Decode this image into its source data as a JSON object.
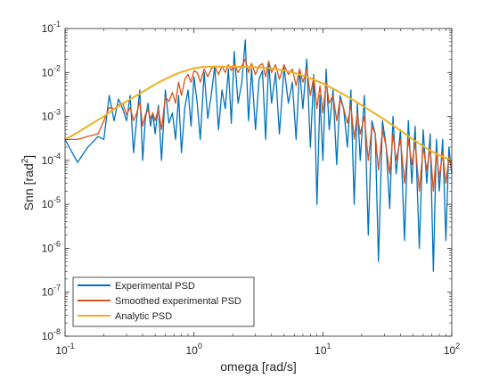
{
  "figure": {
    "background": "#ffffff"
  },
  "chart_data": {
    "type": "line",
    "title": "",
    "xlabel": "omega [rad/s]",
    "ylabel_main": "Snn [rad",
    "ylabel_sup": "2",
    "ylabel_close": "]",
    "xscale": "log",
    "yscale": "log",
    "xlim": [
      0.1,
      100
    ],
    "ylim": [
      1e-08,
      0.1
    ],
    "grid": false,
    "legend_position": "bottom-left",
    "x_ticks": [
      {
        "value": 0.1,
        "base": "10",
        "exp": "-1"
      },
      {
        "value": 1,
        "base": "10",
        "exp": "0"
      },
      {
        "value": 10,
        "base": "10",
        "exp": "1"
      },
      {
        "value": 100,
        "base": "10",
        "exp": "2"
      }
    ],
    "y_ticks": [
      {
        "value": 1e-08,
        "base": "10",
        "exp": "-8"
      },
      {
        "value": 1e-07,
        "base": "10",
        "exp": "-7"
      },
      {
        "value": 1e-06,
        "base": "10",
        "exp": "-6"
      },
      {
        "value": 1e-05,
        "base": "10",
        "exp": "-5"
      },
      {
        "value": 0.0001,
        "base": "10",
        "exp": "-4"
      },
      {
        "value": 0.001,
        "base": "10",
        "exp": "-3"
      },
      {
        "value": 0.01,
        "base": "10",
        "exp": "-2"
      },
      {
        "value": 0.1,
        "base": "10",
        "exp": "-1"
      }
    ],
    "series": [
      {
        "name": "Experimental PSD",
        "color": "#0072BD",
        "x": [
          0.1,
          0.125,
          0.15,
          0.18,
          0.2,
          0.22,
          0.24,
          0.26,
          0.28,
          0.3,
          0.32,
          0.34,
          0.36,
          0.38,
          0.4,
          0.42,
          0.44,
          0.46,
          0.48,
          0.5,
          0.53,
          0.56,
          0.6,
          0.64,
          0.68,
          0.72,
          0.76,
          0.8,
          0.85,
          0.9,
          0.95,
          1.0,
          1.06,
          1.12,
          1.2,
          1.28,
          1.36,
          1.45,
          1.55,
          1.65,
          1.75,
          1.85,
          1.95,
          2.05,
          2.2,
          2.35,
          2.5,
          2.65,
          2.8,
          3.0,
          3.2,
          3.4,
          3.6,
          3.8,
          4.0,
          4.3,
          4.6,
          5.0,
          5.4,
          5.8,
          6.2,
          6.6,
          7.0,
          7.5,
          8.0,
          8.5,
          9.0,
          9.5,
          10.0,
          10.6,
          11.2,
          12.0,
          12.8,
          13.6,
          14.5,
          15.5,
          16.5,
          17.5,
          18.5,
          19.5,
          21.0,
          22.5,
          24.0,
          25.5,
          27.0,
          29.0,
          31.0,
          33.0,
          35.0,
          37.0,
          40.0,
          43.0,
          46.0,
          49.0,
          52.0,
          56.0,
          60.0,
          64.0,
          68.0,
          72.0,
          76.0,
          80.0,
          85.0,
          90.0,
          95.0,
          100.0
        ],
        "y": [
          0.0003,
          9e-05,
          0.0002,
          0.00035,
          0.0003,
          0.003,
          0.0008,
          0.0025,
          0.0015,
          0.0008,
          0.003,
          0.00015,
          0.0009,
          0.004,
          0.0001,
          0.0009,
          0.002,
          0.0006,
          0.0012,
          0.0004,
          0.0018,
          0.0001,
          0.004,
          0.0007,
          0.0012,
          0.0003,
          0.003,
          0.00015,
          0.0016,
          0.004,
          0.0006,
          0.008,
          0.002,
          0.0003,
          0.01,
          0.0009,
          0.003,
          0.014,
          0.0005,
          0.004,
          0.0015,
          0.012,
          0.0007,
          0.03,
          0.002,
          0.006,
          0.055,
          0.0008,
          0.012,
          0.0005,
          0.007,
          0.011,
          0.0003,
          0.018,
          0.002,
          0.01,
          0.0004,
          0.013,
          0.002,
          0.006,
          0.0003,
          0.012,
          0.0015,
          0.02,
          0.0002,
          0.009,
          1e-05,
          0.003,
          0.0001,
          0.012,
          0.0005,
          0.004,
          8e-05,
          0.003,
          0.0015,
          0.0002,
          0.004,
          1e-05,
          0.002,
          0.0001,
          0.003,
          2e-06,
          0.0008,
          0.0004,
          5e-07,
          0.0008,
          0.0002,
          8e-06,
          0.001,
          5e-05,
          0.0005,
          1.5e-06,
          0.0008,
          3e-05,
          0.0006,
          1e-06,
          0.0005,
          3e-05,
          0.0004,
          3e-07,
          0.0003,
          2e-05,
          0.0003,
          1.5e-06,
          0.0002,
          5e-05
        ]
      },
      {
        "name": "Smoothed experimental PSD",
        "color": "#D95319",
        "x": [
          0.1,
          0.125,
          0.15,
          0.18,
          0.2,
          0.22,
          0.24,
          0.26,
          0.28,
          0.3,
          0.32,
          0.34,
          0.36,
          0.38,
          0.4,
          0.42,
          0.44,
          0.46,
          0.48,
          0.5,
          0.53,
          0.56,
          0.6,
          0.64,
          0.68,
          0.72,
          0.76,
          0.8,
          0.85,
          0.9,
          0.95,
          1.0,
          1.06,
          1.12,
          1.2,
          1.28,
          1.36,
          1.45,
          1.55,
          1.65,
          1.75,
          1.85,
          1.95,
          2.05,
          2.2,
          2.35,
          2.5,
          2.65,
          2.8,
          3.0,
          3.2,
          3.4,
          3.6,
          3.8,
          4.0,
          4.3,
          4.6,
          5.0,
          5.4,
          5.8,
          6.2,
          6.6,
          7.0,
          7.5,
          8.0,
          8.5,
          9.0,
          9.5,
          10.0,
          10.6,
          11.2,
          12.0,
          12.8,
          13.6,
          14.5,
          15.5,
          16.5,
          17.5,
          18.5,
          19.5,
          21.0,
          22.5,
          24.0,
          25.5,
          27.0,
          29.0,
          31.0,
          33.0,
          35.0,
          37.0,
          40.0,
          43.0,
          46.0,
          49.0,
          52.0,
          56.0,
          60.0,
          64.0,
          68.0,
          72.0,
          76.0,
          80.0,
          85.0,
          90.0,
          95.0,
          100.0
        ],
        "y": [
          0.0003,
          0.0003,
          0.00035,
          0.0004,
          0.0008,
          0.0016,
          0.0015,
          0.0018,
          0.002,
          0.0011,
          0.0016,
          0.0008,
          0.0012,
          0.0022,
          0.0006,
          0.0011,
          0.0014,
          0.0009,
          0.0012,
          0.0008,
          0.0015,
          0.0005,
          0.0028,
          0.0022,
          0.0035,
          0.002,
          0.006,
          0.003,
          0.007,
          0.009,
          0.006,
          0.011,
          0.01,
          0.006,
          0.012,
          0.008,
          0.012,
          0.014,
          0.009,
          0.014,
          0.01,
          0.015,
          0.011,
          0.016,
          0.01,
          0.014,
          0.02,
          0.01,
          0.016,
          0.009,
          0.014,
          0.016,
          0.008,
          0.018,
          0.01,
          0.015,
          0.007,
          0.015,
          0.009,
          0.012,
          0.005,
          0.012,
          0.006,
          0.012,
          0.003,
          0.008,
          0.0015,
          0.005,
          0.0012,
          0.006,
          0.002,
          0.003,
          0.0008,
          0.0025,
          0.0015,
          0.0007,
          0.0018,
          0.0003,
          0.0012,
          0.0004,
          0.001,
          0.0001,
          0.0006,
          0.0004,
          6e-05,
          0.0005,
          0.0002,
          5e-05,
          0.0004,
          0.0001,
          0.0003,
          3e-05,
          0.0003,
          8e-05,
          0.00025,
          2e-05,
          0.0002,
          6e-05,
          0.0002,
          2e-05,
          0.00015,
          4e-05,
          0.00015,
          3e-05,
          0.00012,
          6e-05
        ]
      },
      {
        "name": "Analytic PSD",
        "color": "#EDB120",
        "x": [
          0.1,
          0.12,
          0.15,
          0.2,
          0.25,
          0.3,
          0.4,
          0.5,
          0.6,
          0.7,
          0.8,
          1.0,
          1.2,
          1.5,
          2.0,
          2.5,
          3.0,
          4.0,
          5.0,
          6.0,
          7.0,
          8.0,
          10.0,
          12.0,
          15.0,
          20.0,
          25.0,
          30.0,
          40.0,
          50.0,
          60.0,
          70.0,
          80.0,
          100.0
        ],
        "y": [
          0.0003,
          0.0004,
          0.0006,
          0.001,
          0.0016,
          0.0022,
          0.0036,
          0.0054,
          0.0071,
          0.0088,
          0.0103,
          0.0125,
          0.0135,
          0.0136,
          0.0136,
          0.0135,
          0.0132,
          0.0124,
          0.0112,
          0.0098,
          0.0085,
          0.0074,
          0.0056,
          0.0043,
          0.003,
          0.0018,
          0.0012,
          0.00085,
          0.00048,
          0.0003,
          0.00021,
          0.00016,
          0.00013,
          0.0001
        ]
      }
    ]
  }
}
